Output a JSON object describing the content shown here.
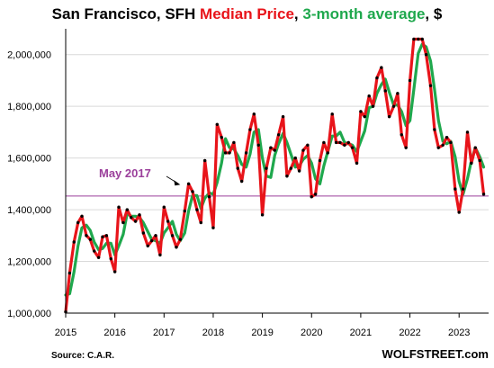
{
  "chart_data": {
    "type": "line",
    "title_parts": [
      {
        "text": "San Francisco, SFH ",
        "color": "#000000"
      },
      {
        "text": "Median Price",
        "color": "#e8141a"
      },
      {
        "text": ", ",
        "color": "#000000"
      },
      {
        "text": "3-month average",
        "color": "#1fa84d"
      },
      {
        "text": ", $",
        "color": "#000000"
      }
    ],
    "xlabel": "",
    "ylabel": "",
    "xlim": [
      2015.0,
      2023.6
    ],
    "ylim": [
      1000000,
      2100000
    ],
    "y_ticks": [
      1000000,
      1200000,
      1400000,
      1600000,
      1800000,
      2000000
    ],
    "y_tick_labels": [
      "1,000,000",
      "1,200,000",
      "1,400,000",
      "1,600,000",
      "1,800,000",
      "2,000,000"
    ],
    "x_ticks": [
      2015,
      2016,
      2017,
      2018,
      2019,
      2020,
      2021,
      2022,
      2023
    ],
    "x_tick_labels": [
      "2015",
      "2016",
      "2017",
      "2018",
      "2019",
      "2020",
      "2021",
      "2022",
      "2023"
    ],
    "grid": "horizontal",
    "series": [
      {
        "name": "Median Price",
        "color": "#e8141a",
        "markers": true,
        "points": [
          [
            2015.0,
            1005000
          ],
          [
            2015.08,
            1155000
          ],
          [
            2015.17,
            1275000
          ],
          [
            2015.25,
            1350000
          ],
          [
            2015.33,
            1375000
          ],
          [
            2015.42,
            1300000
          ],
          [
            2015.5,
            1285000
          ],
          [
            2015.58,
            1240000
          ],
          [
            2015.67,
            1215000
          ],
          [
            2015.75,
            1295000
          ],
          [
            2015.83,
            1300000
          ],
          [
            2015.92,
            1210000
          ],
          [
            2016.0,
            1160000
          ],
          [
            2016.08,
            1410000
          ],
          [
            2016.17,
            1350000
          ],
          [
            2016.25,
            1400000
          ],
          [
            2016.33,
            1370000
          ],
          [
            2016.42,
            1355000
          ],
          [
            2016.5,
            1380000
          ],
          [
            2016.58,
            1310000
          ],
          [
            2016.67,
            1260000
          ],
          [
            2016.75,
            1280000
          ],
          [
            2016.83,
            1300000
          ],
          [
            2016.92,
            1225000
          ],
          [
            2017.0,
            1410000
          ],
          [
            2017.08,
            1355000
          ],
          [
            2017.17,
            1300000
          ],
          [
            2017.25,
            1255000
          ],
          [
            2017.33,
            1285000
          ],
          [
            2017.42,
            1395000
          ],
          [
            2017.5,
            1500000
          ],
          [
            2017.58,
            1470000
          ],
          [
            2017.67,
            1400000
          ],
          [
            2017.75,
            1350000
          ],
          [
            2017.83,
            1590000
          ],
          [
            2017.92,
            1450000
          ],
          [
            2018.0,
            1330000
          ],
          [
            2018.08,
            1730000
          ],
          [
            2018.17,
            1680000
          ],
          [
            2018.25,
            1620000
          ],
          [
            2018.33,
            1620000
          ],
          [
            2018.42,
            1660000
          ],
          [
            2018.5,
            1560000
          ],
          [
            2018.58,
            1510000
          ],
          [
            2018.67,
            1620000
          ],
          [
            2018.75,
            1710000
          ],
          [
            2018.83,
            1770000
          ],
          [
            2018.92,
            1650000
          ],
          [
            2019.0,
            1380000
          ],
          [
            2019.08,
            1560000
          ],
          [
            2019.17,
            1640000
          ],
          [
            2019.25,
            1630000
          ],
          [
            2019.33,
            1690000
          ],
          [
            2019.42,
            1760000
          ],
          [
            2019.5,
            1530000
          ],
          [
            2019.58,
            1560000
          ],
          [
            2019.67,
            1600000
          ],
          [
            2019.75,
            1550000
          ],
          [
            2019.83,
            1630000
          ],
          [
            2019.92,
            1650000
          ],
          [
            2020.0,
            1450000
          ],
          [
            2020.08,
            1460000
          ],
          [
            2020.17,
            1590000
          ],
          [
            2020.25,
            1660000
          ],
          [
            2020.33,
            1620000
          ],
          [
            2020.42,
            1770000
          ],
          [
            2020.5,
            1660000
          ],
          [
            2020.58,
            1660000
          ],
          [
            2020.67,
            1650000
          ],
          [
            2020.75,
            1660000
          ],
          [
            2020.83,
            1640000
          ],
          [
            2020.92,
            1580000
          ],
          [
            2021.0,
            1780000
          ],
          [
            2021.08,
            1760000
          ],
          [
            2021.17,
            1840000
          ],
          [
            2021.25,
            1800000
          ],
          [
            2021.33,
            1910000
          ],
          [
            2021.42,
            1950000
          ],
          [
            2021.5,
            1860000
          ],
          [
            2021.58,
            1760000
          ],
          [
            2021.67,
            1800000
          ],
          [
            2021.75,
            1850000
          ],
          [
            2021.83,
            1690000
          ],
          [
            2021.92,
            1640000
          ],
          [
            2022.0,
            1900000
          ],
          [
            2022.08,
            2060000
          ],
          [
            2022.17,
            2060000
          ],
          [
            2022.25,
            2060000
          ],
          [
            2022.33,
            2000000
          ],
          [
            2022.42,
            1880000
          ],
          [
            2022.5,
            1710000
          ],
          [
            2022.58,
            1640000
          ],
          [
            2022.67,
            1650000
          ],
          [
            2022.75,
            1680000
          ],
          [
            2022.83,
            1660000
          ],
          [
            2022.92,
            1480000
          ],
          [
            2023.0,
            1390000
          ],
          [
            2023.08,
            1480000
          ],
          [
            2023.17,
            1700000
          ],
          [
            2023.25,
            1580000
          ],
          [
            2023.33,
            1640000
          ],
          [
            2023.42,
            1590000
          ],
          [
            2023.5,
            1460000
          ]
        ]
      },
      {
        "name": "3-month average",
        "color": "#1fa84d",
        "markers": false,
        "points": [
          [
            2015.0,
            1070000
          ],
          [
            2015.08,
            1075000
          ],
          [
            2015.17,
            1160000
          ],
          [
            2015.25,
            1260000
          ],
          [
            2015.33,
            1330000
          ],
          [
            2015.42,
            1340000
          ],
          [
            2015.5,
            1320000
          ],
          [
            2015.58,
            1275000
          ],
          [
            2015.67,
            1245000
          ],
          [
            2015.75,
            1250000
          ],
          [
            2015.83,
            1270000
          ],
          [
            2015.92,
            1270000
          ],
          [
            2016.0,
            1225000
          ],
          [
            2016.08,
            1260000
          ],
          [
            2016.17,
            1305000
          ],
          [
            2016.25,
            1385000
          ],
          [
            2016.33,
            1375000
          ],
          [
            2016.42,
            1375000
          ],
          [
            2016.5,
            1370000
          ],
          [
            2016.58,
            1350000
          ],
          [
            2016.67,
            1315000
          ],
          [
            2016.75,
            1285000
          ],
          [
            2016.83,
            1280000
          ],
          [
            2016.92,
            1270000
          ],
          [
            2017.0,
            1310000
          ],
          [
            2017.08,
            1330000
          ],
          [
            2017.17,
            1355000
          ],
          [
            2017.25,
            1305000
          ],
          [
            2017.33,
            1280000
          ],
          [
            2017.42,
            1310000
          ],
          [
            2017.5,
            1395000
          ],
          [
            2017.58,
            1455000
          ],
          [
            2017.67,
            1455000
          ],
          [
            2017.75,
            1405000
          ],
          [
            2017.83,
            1445000
          ],
          [
            2017.92,
            1465000
          ],
          [
            2018.0,
            1460000
          ],
          [
            2018.08,
            1505000
          ],
          [
            2018.17,
            1580000
          ],
          [
            2018.25,
            1675000
          ],
          [
            2018.33,
            1640000
          ],
          [
            2018.42,
            1635000
          ],
          [
            2018.5,
            1610000
          ],
          [
            2018.58,
            1575000
          ],
          [
            2018.67,
            1565000
          ],
          [
            2018.75,
            1615000
          ],
          [
            2018.83,
            1700000
          ],
          [
            2018.92,
            1710000
          ],
          [
            2019.0,
            1600000
          ],
          [
            2019.08,
            1530000
          ],
          [
            2019.17,
            1525000
          ],
          [
            2019.25,
            1610000
          ],
          [
            2019.33,
            1655000
          ],
          [
            2019.42,
            1695000
          ],
          [
            2019.5,
            1660000
          ],
          [
            2019.58,
            1615000
          ],
          [
            2019.67,
            1565000
          ],
          [
            2019.75,
            1570000
          ],
          [
            2019.83,
            1595000
          ],
          [
            2019.92,
            1610000
          ],
          [
            2020.0,
            1580000
          ],
          [
            2020.08,
            1520000
          ],
          [
            2020.17,
            1500000
          ],
          [
            2020.25,
            1570000
          ],
          [
            2020.33,
            1625000
          ],
          [
            2020.42,
            1685000
          ],
          [
            2020.5,
            1685000
          ],
          [
            2020.58,
            1700000
          ],
          [
            2020.67,
            1660000
          ],
          [
            2020.75,
            1655000
          ],
          [
            2020.83,
            1650000
          ],
          [
            2020.92,
            1625000
          ],
          [
            2021.0,
            1665000
          ],
          [
            2021.08,
            1705000
          ],
          [
            2021.17,
            1795000
          ],
          [
            2021.25,
            1800000
          ],
          [
            2021.33,
            1850000
          ],
          [
            2021.42,
            1885000
          ],
          [
            2021.5,
            1905000
          ],
          [
            2021.58,
            1855000
          ],
          [
            2021.67,
            1805000
          ],
          [
            2021.75,
            1805000
          ],
          [
            2021.83,
            1780000
          ],
          [
            2021.92,
            1725000
          ],
          [
            2022.0,
            1745000
          ],
          [
            2022.08,
            1865000
          ],
          [
            2022.17,
            2005000
          ],
          [
            2022.25,
            2040000
          ],
          [
            2022.33,
            2030000
          ],
          [
            2022.42,
            1975000
          ],
          [
            2022.5,
            1865000
          ],
          [
            2022.58,
            1745000
          ],
          [
            2022.67,
            1665000
          ],
          [
            2022.75,
            1655000
          ],
          [
            2022.83,
            1665000
          ],
          [
            2022.92,
            1605000
          ],
          [
            2023.0,
            1510000
          ],
          [
            2023.08,
            1460000
          ],
          [
            2023.17,
            1520000
          ],
          [
            2023.25,
            1590000
          ],
          [
            2023.33,
            1640000
          ],
          [
            2023.42,
            1605000
          ],
          [
            2023.5,
            1565000
          ]
        ]
      }
    ],
    "reference_line": {
      "y": 1453000,
      "label": "May 2017",
      "color": "#9b3f9b"
    },
    "source": "Source: C.A.R.",
    "brand": "WOLFSTREET.com"
  }
}
